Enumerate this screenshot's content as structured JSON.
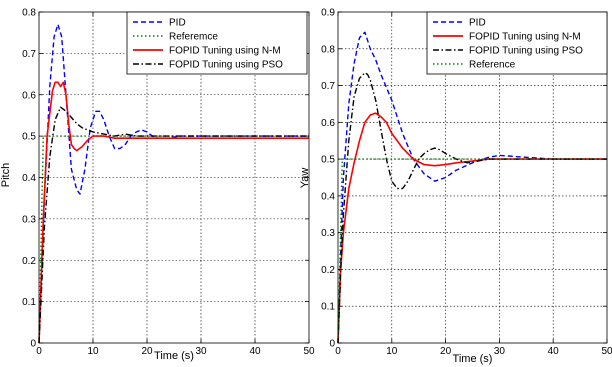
{
  "chart_data": [
    {
      "type": "line",
      "xlabel": "Time (s)",
      "ylabel": "Pitch",
      "xlim": [
        0,
        50
      ],
      "ylim": [
        0,
        0.8
      ],
      "xticks": [
        0,
        10,
        20,
        30,
        40,
        50
      ],
      "yticks": [
        0,
        0.1,
        0.2,
        0.3,
        0.4,
        0.5,
        0.6,
        0.7,
        0.8
      ],
      "grid": true,
      "legend_position": "top-right",
      "series": [
        {
          "name": "PID",
          "color": "#0000ff",
          "dash": "dashed",
          "x": [
            0,
            1,
            2,
            2.8,
            3.5,
            4.2,
            5,
            6,
            7,
            7.6,
            8.5,
            9.5,
            10.5,
            11.2,
            12,
            13,
            14,
            15,
            16,
            17,
            18,
            19,
            20,
            21,
            22,
            24,
            26,
            28,
            30,
            35,
            40,
            45,
            50
          ],
          "y": [
            0,
            0.35,
            0.62,
            0.74,
            0.77,
            0.74,
            0.6,
            0.42,
            0.37,
            0.36,
            0.42,
            0.52,
            0.56,
            0.56,
            0.54,
            0.5,
            0.47,
            0.47,
            0.48,
            0.5,
            0.51,
            0.515,
            0.51,
            0.5,
            0.495,
            0.495,
            0.5,
            0.5,
            0.5,
            0.5,
            0.5,
            0.5,
            0.5
          ]
        },
        {
          "name": "Referemce",
          "color": "#008000",
          "dash": "dotted",
          "x": [
            0,
            0.8,
            50
          ],
          "y": [
            0,
            0.5,
            0.5
          ]
        },
        {
          "name": "FOPID Tuning using N-M",
          "color": "#ff0000",
          "dash": "solid",
          "x": [
            0,
            0.8,
            1.5,
            2.5,
            3,
            3.5,
            4,
            4.5,
            5,
            5.5,
            6,
            6.5,
            7,
            8,
            9,
            10,
            12,
            14,
            20,
            30,
            50
          ],
          "y": [
            0,
            0.3,
            0.5,
            0.61,
            0.63,
            0.63,
            0.62,
            0.63,
            0.6,
            0.53,
            0.48,
            0.47,
            0.465,
            0.475,
            0.49,
            0.5,
            0.5,
            0.495,
            0.495,
            0.495,
            0.495
          ]
        },
        {
          "name": "FOPID Tuning using PSO",
          "color": "#000000",
          "dash": "dashdot",
          "x": [
            0,
            1,
            2,
            3,
            4,
            5,
            6,
            7,
            8,
            10,
            12,
            14,
            16,
            18,
            20,
            25,
            30,
            35,
            40,
            45,
            50
          ],
          "y": [
            0,
            0.28,
            0.45,
            0.54,
            0.57,
            0.56,
            0.545,
            0.53,
            0.52,
            0.51,
            0.505,
            0.5,
            0.505,
            0.5,
            0.5,
            0.5,
            0.5,
            0.5,
            0.5,
            0.5,
            0.5
          ]
        }
      ]
    },
    {
      "type": "line",
      "xlabel": "Time (s)",
      "ylabel": "Yaw",
      "xlim": [
        0,
        50
      ],
      "ylim": [
        0,
        0.9
      ],
      "xticks": [
        0,
        10,
        20,
        30,
        40,
        50
      ],
      "yticks": [
        0,
        0.1,
        0.2,
        0.3,
        0.4,
        0.5,
        0.6,
        0.7,
        0.8,
        0.9
      ],
      "grid": true,
      "legend_position": "top-right",
      "series": [
        {
          "name": "PID",
          "color": "#0000ff",
          "dash": "dashed",
          "x": [
            0,
            0.5,
            1,
            2,
            3,
            4,
            5,
            6,
            7,
            8,
            10,
            12,
            14,
            16,
            18,
            20,
            22,
            25,
            28,
            30,
            35,
            40,
            45,
            50
          ],
          "y": [
            0,
            0.25,
            0.45,
            0.65,
            0.76,
            0.83,
            0.845,
            0.8,
            0.77,
            0.73,
            0.66,
            0.57,
            0.5,
            0.46,
            0.44,
            0.45,
            0.47,
            0.49,
            0.505,
            0.51,
            0.505,
            0.5,
            0.5,
            0.5
          ]
        },
        {
          "name": "FOPID Tuning using N-M",
          "color": "#ff0000",
          "dash": "solid",
          "x": [
            0,
            0.5,
            1,
            2,
            3,
            4,
            5,
            6,
            7,
            8,
            9,
            10,
            12,
            14,
            16,
            18,
            20,
            22,
            25,
            28,
            30,
            35,
            40,
            50
          ],
          "y": [
            0,
            0.2,
            0.3,
            0.42,
            0.49,
            0.55,
            0.6,
            0.62,
            0.625,
            0.615,
            0.6,
            0.57,
            0.53,
            0.5,
            0.485,
            0.482,
            0.485,
            0.49,
            0.495,
            0.5,
            0.5,
            0.5,
            0.5,
            0.5
          ]
        },
        {
          "name": "FOPID Tuning using PSO",
          "color": "#000000",
          "dash": "dashdot",
          "x": [
            0,
            0.5,
            1,
            2,
            3,
            4,
            5,
            5.5,
            6,
            7,
            8,
            9,
            10,
            11,
            12,
            13,
            14,
            15,
            16,
            17,
            18,
            19,
            20,
            22,
            24,
            26,
            28,
            30,
            35,
            40,
            50
          ],
          "y": [
            0,
            0.2,
            0.35,
            0.55,
            0.67,
            0.72,
            0.735,
            0.73,
            0.715,
            0.66,
            0.58,
            0.5,
            0.44,
            0.42,
            0.42,
            0.44,
            0.47,
            0.5,
            0.515,
            0.525,
            0.53,
            0.525,
            0.515,
            0.5,
            0.49,
            0.495,
            0.5,
            0.5,
            0.5,
            0.5,
            0.5
          ]
        },
        {
          "name": "Reference",
          "color": "#008000",
          "dash": "dotted",
          "x": [
            0,
            0.8,
            50
          ],
          "y": [
            0,
            0.5,
            0.5
          ]
        }
      ]
    }
  ]
}
